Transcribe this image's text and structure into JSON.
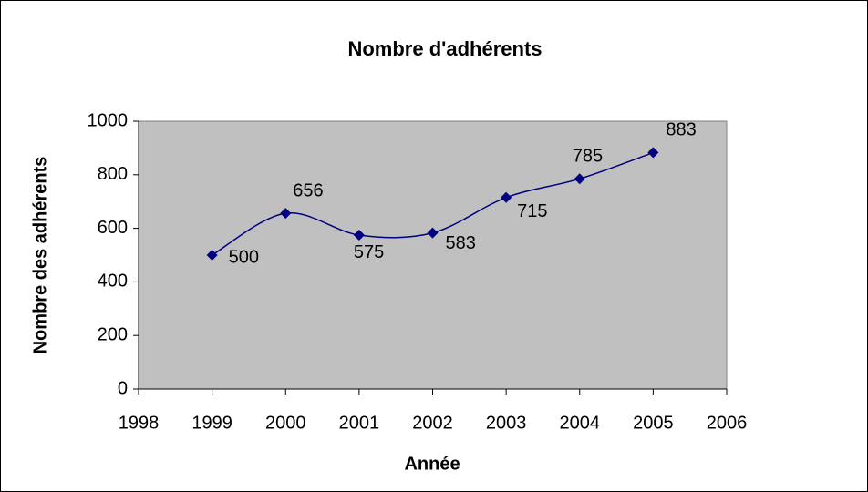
{
  "chart_data": {
    "type": "line",
    "title": "Nombre d'adhérents",
    "x_label": "Année",
    "y_label": "Nombre des adhérents",
    "x": [
      1999,
      2000,
      2001,
      2002,
      2003,
      2004,
      2005
    ],
    "series": [
      {
        "name": "Nombre d'adhérents",
        "color": "#000080",
        "values": [
          500,
          656,
          575,
          583,
          715,
          785,
          883
        ]
      }
    ],
    "xlim": [
      1998,
      2006
    ],
    "xticks": [
      1998,
      1999,
      2000,
      2001,
      2002,
      2003,
      2004,
      2005,
      2006
    ],
    "ylim": [
      0,
      1000
    ],
    "yticks": [
      0,
      200,
      400,
      600,
      800,
      1000
    ],
    "grid": false,
    "smooth": true,
    "plot_background": "#c0c0c0"
  }
}
